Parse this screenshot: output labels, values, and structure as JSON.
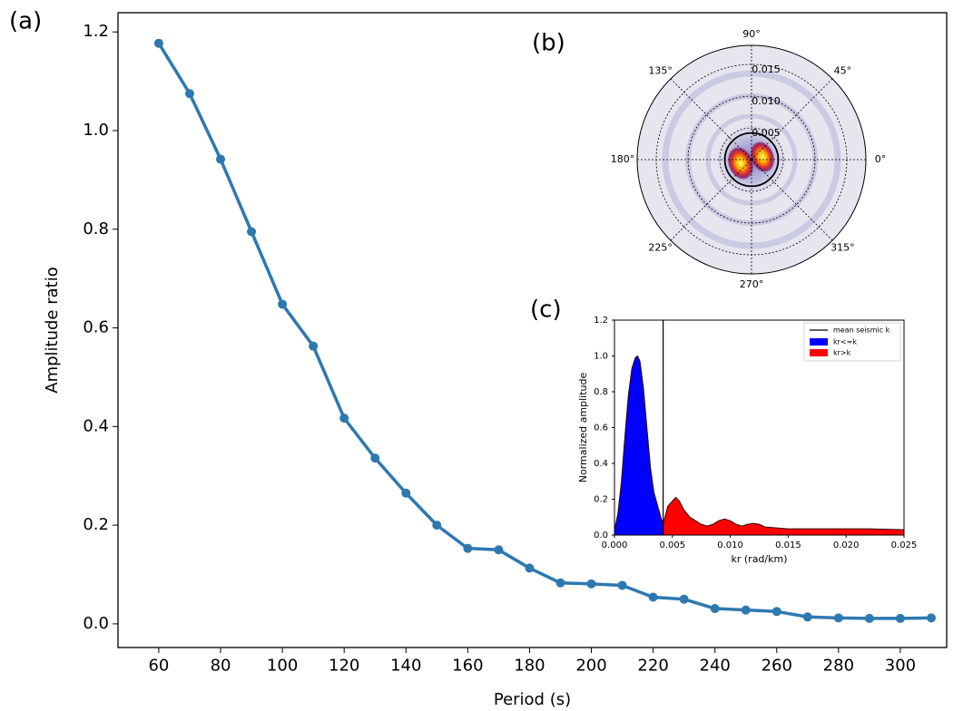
{
  "chart_data": [
    {
      "type": "line",
      "panel_label": "(a)",
      "x_label": "Period (s)",
      "y_label": "Amplitude ratio",
      "color": "#2e78b0",
      "x": [
        60,
        70,
        80,
        90,
        100,
        110,
        120,
        130,
        140,
        150,
        160,
        170,
        180,
        190,
        200,
        210,
        220,
        230,
        240,
        250,
        260,
        270,
        280,
        290,
        300,
        310
      ],
      "values": [
        1.177,
        1.075,
        0.942,
        0.795,
        0.648,
        0.563,
        0.417,
        0.336,
        0.265,
        0.2,
        0.153,
        0.15,
        0.113,
        0.083,
        0.081,
        0.078,
        0.054,
        0.05,
        0.031,
        0.028,
        0.025,
        0.014,
        0.012,
        0.011,
        0.011,
        0.012
      ],
      "xlim": [
        46.8,
        315
      ],
      "ylim": [
        -0.048,
        1.239
      ],
      "xticks": [
        60,
        80,
        100,
        120,
        140,
        160,
        180,
        200,
        220,
        240,
        260,
        280,
        300
      ],
      "yticks": [
        {
          "value": 0,
          "label": "0.0"
        },
        {
          "value": 0.2,
          "label": "0.2"
        },
        {
          "value": 0.4,
          "label": "0.4"
        },
        {
          "value": 0.6,
          "label": "0.6"
        },
        {
          "value": 0.8,
          "label": "0.8"
        },
        {
          "value": 1,
          "label": "1.0"
        },
        {
          "value": 1.2,
          "label": "1.2"
        }
      ]
    },
    {
      "type": "polar",
      "panel_label": "(b)",
      "rlim": [
        0,
        0.018
      ],
      "circle_r": 0.0042,
      "rticks": [
        0.005,
        {
          "value": 0.01,
          "label": "0.010"
        },
        0.015
      ],
      "angle_ticks": [
        {
          "value": 0,
          "label": "0°"
        },
        {
          "value": 45,
          "label": "45°"
        },
        {
          "value": 90,
          "label": "90°"
        },
        {
          "value": 135,
          "label": "135°"
        },
        {
          "value": 180,
          "label": "180°"
        },
        {
          "value": 225,
          "label": "225°"
        },
        {
          "value": 270,
          "label": "270°"
        },
        {
          "value": 315,
          "label": "315°"
        }
      ]
    },
    {
      "type": "area",
      "panel_label": "(c)",
      "x_label": "kr (rad/km)",
      "y_label": "Normalized amplitude",
      "xlim": [
        0,
        0.025
      ],
      "ylim": [
        0,
        1.2
      ],
      "xticks": [
        {
          "value": 0,
          "label": "0.000"
        },
        {
          "value": 0.005,
          "label": "0.005"
        },
        {
          "value": 0.01,
          "label": "0.010"
        },
        {
          "value": 0.015,
          "label": "0.015"
        },
        {
          "value": 0.02,
          "label": "0.020"
        },
        {
          "value": 0.025,
          "label": "0.025"
        }
      ],
      "yticks": [
        {
          "value": 0,
          "label": "0.0"
        },
        {
          "value": 0.2,
          "label": "0.2"
        },
        {
          "value": 0.4,
          "label": "0.4"
        },
        {
          "value": 0.6,
          "label": "0.6"
        },
        {
          "value": 0.8,
          "label": "0.8"
        },
        {
          "value": 1,
          "label": "1.0"
        },
        {
          "value": 1.2,
          "label": "1.2"
        }
      ],
      "reference_line": {
        "name": "mean seismic k",
        "x": 0.0042,
        "color": "#000000"
      },
      "series": [
        {
          "name": "kr<=k",
          "color": "#0000ff",
          "x": [
            0,
            0.0003,
            0.0006,
            0.0009,
            0.0012,
            0.0015,
            0.0018,
            0.002,
            0.0022,
            0.0025,
            0.0028,
            0.0031,
            0.0034,
            0.0037,
            0.004,
            0.0042
          ],
          "values": [
            0.03,
            0.12,
            0.3,
            0.55,
            0.78,
            0.93,
            0.99,
            1.0,
            0.97,
            0.82,
            0.6,
            0.38,
            0.24,
            0.17,
            0.1,
            0.06
          ]
        },
        {
          "name": "kr>k",
          "color": "#ff0000",
          "x": [
            0.0042,
            0.0046,
            0.005,
            0.0053,
            0.0056,
            0.006,
            0.0065,
            0.007,
            0.0075,
            0.008,
            0.0085,
            0.009,
            0.0095,
            0.01,
            0.0105,
            0.011,
            0.0115,
            0.012,
            0.0125,
            0.013,
            0.014,
            0.015,
            0.016,
            0.018,
            0.02,
            0.022,
            0.025
          ],
          "values": [
            0.06,
            0.16,
            0.19,
            0.21,
            0.19,
            0.14,
            0.1,
            0.08,
            0.06,
            0.05,
            0.06,
            0.08,
            0.09,
            0.08,
            0.06,
            0.05,
            0.06,
            0.065,
            0.06,
            0.045,
            0.04,
            0.035,
            0.035,
            0.035,
            0.035,
            0.035,
            0.03
          ]
        }
      ]
    }
  ]
}
